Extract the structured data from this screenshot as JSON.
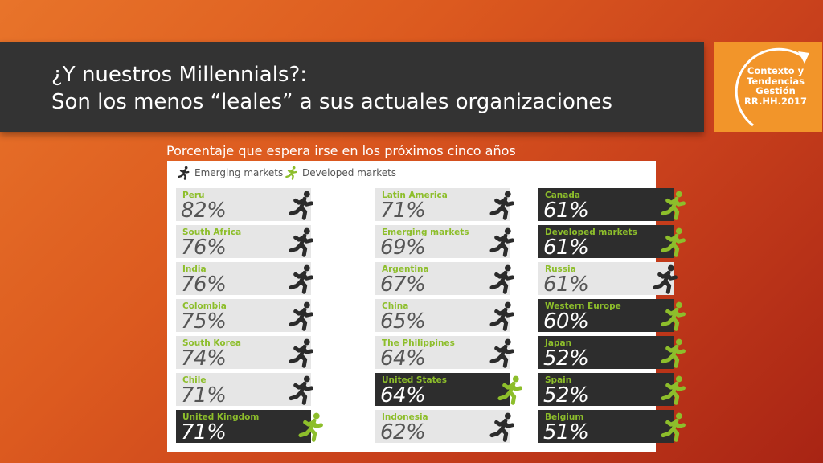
{
  "header": {
    "title_line1": "¿Y nuestros Millennials?:",
    "title_line2": "Son los menos “leales” a sus actuales organizaciones"
  },
  "badge": {
    "line1": "Contexto y",
    "line2": "Tendencias",
    "line3": "Gestión",
    "line4": "RR.HH.2017"
  },
  "subtitle": "Porcentaje que espera irse en los próximos cinco años",
  "legend": {
    "emerging": "Emerging markets",
    "developed": "Developed markets"
  },
  "colors": {
    "emerging_icon": "#2b2b2b",
    "developed_icon": "#8dbe2b",
    "label_green": "#8dbe2b"
  },
  "columns": [
    [
      {
        "label": "Peru",
        "value": "82%",
        "market": "emerging"
      },
      {
        "label": "South Africa",
        "value": "76%",
        "market": "emerging"
      },
      {
        "label": "India",
        "value": "76%",
        "market": "emerging"
      },
      {
        "label": "Colombia",
        "value": "75%",
        "market": "emerging"
      },
      {
        "label": "South Korea",
        "value": "74%",
        "market": "emerging"
      },
      {
        "label": "Chile",
        "value": "71%",
        "market": "emerging"
      },
      {
        "label": "United Kingdom",
        "value": "71%",
        "market": "developed"
      }
    ],
    [
      {
        "label": "Latin America",
        "value": "71%",
        "market": "emerging"
      },
      {
        "label": "Emerging markets",
        "value": "69%",
        "market": "emerging"
      },
      {
        "label": "Argentina",
        "value": "67%",
        "market": "emerging"
      },
      {
        "label": "China",
        "value": "65%",
        "market": "emerging"
      },
      {
        "label": "The Philippines",
        "value": "64%",
        "market": "emerging"
      },
      {
        "label": "United States",
        "value": "64%",
        "market": "developed"
      },
      {
        "label": "Indonesia",
        "value": "62%",
        "market": "emerging"
      }
    ],
    [
      {
        "label": "Canada",
        "value": "61%",
        "market": "developed"
      },
      {
        "label": "Developed markets",
        "value": "61%",
        "market": "developed"
      },
      {
        "label": "Russia",
        "value": "61%",
        "market": "emerging"
      },
      {
        "label": "Western Europe",
        "value": "60%",
        "market": "developed"
      },
      {
        "label": "Japan",
        "value": "52%",
        "market": "developed"
      },
      {
        "label": "Spain",
        "value": "52%",
        "market": "developed"
      },
      {
        "label": "Belgium",
        "value": "51%",
        "market": "developed"
      }
    ]
  ]
}
